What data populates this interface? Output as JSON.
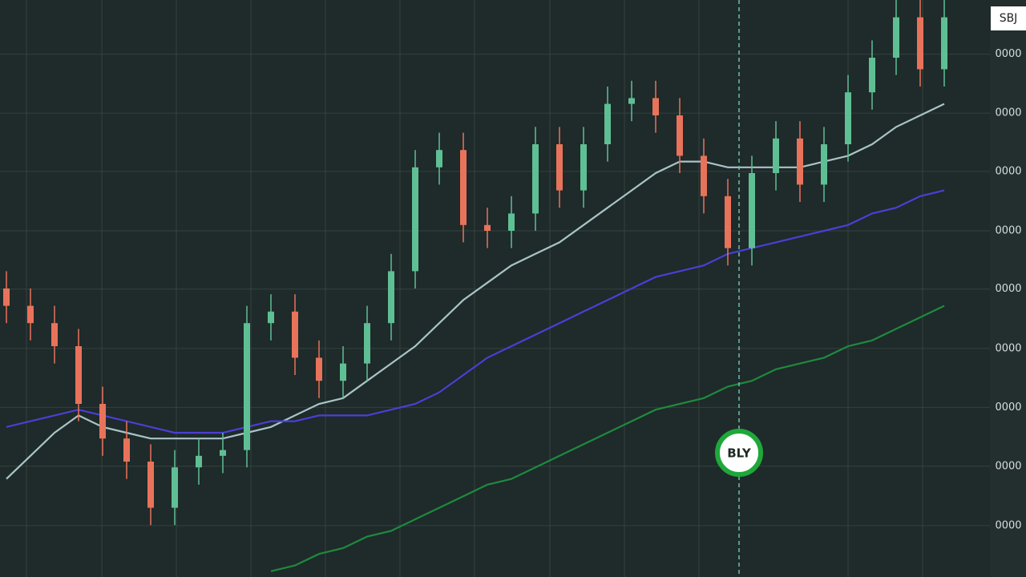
{
  "chart_data": {
    "type": "candlestick",
    "price_label": "SBJ",
    "signal_label": "BLY",
    "ylim": [
      0,
      100
    ],
    "yticks": [
      {
        "value": 90.6,
        "label": "0000"
      },
      {
        "value": 80.4,
        "label": "0000"
      },
      {
        "value": 70.3,
        "label": "0000"
      },
      {
        "value": 60,
        "label": "0000"
      },
      {
        "value": 49.9,
        "label": "0000"
      },
      {
        "value": 39.6,
        "label": "0000"
      },
      {
        "value": 29.4,
        "label": "0000"
      },
      {
        "value": 19.2,
        "label": "0000"
      },
      {
        "value": 8.9,
        "label": "0000"
      }
    ],
    "grid": true,
    "up_color": "#5fbf94",
    "down_color": "#e8735a",
    "open": [
      50,
      47,
      44,
      40,
      30,
      24,
      20,
      12,
      19,
      21,
      22,
      44,
      46,
      38,
      34,
      37,
      44,
      53,
      71,
      74,
      61,
      60,
      63,
      75,
      67,
      75,
      82,
      83,
      80,
      73,
      66,
      57,
      70,
      76,
      68,
      75,
      84,
      90,
      97,
      88
    ],
    "high": [
      53,
      50,
      47,
      43,
      33,
      27,
      23,
      22,
      24,
      25,
      47,
      49,
      49,
      41,
      40,
      47,
      56,
      74,
      77,
      77,
      64,
      66,
      78,
      78,
      78,
      85,
      86,
      86,
      83,
      76,
      69,
      73,
      79,
      79,
      78,
      87,
      93,
      100,
      100,
      100
    ],
    "low": [
      44,
      41,
      37,
      27,
      21,
      17,
      9,
      9,
      16,
      18,
      19,
      41,
      35,
      31,
      31,
      34,
      41,
      50,
      68,
      58,
      57,
      57,
      60,
      64,
      64,
      72,
      79,
      77,
      70,
      63,
      54,
      54,
      67,
      65,
      65,
      72,
      81,
      87,
      85,
      85
    ],
    "close": [
      47,
      44,
      40,
      30,
      24,
      20,
      12,
      19,
      21,
      22,
      44,
      46,
      38,
      34,
      37,
      44,
      53,
      71,
      74,
      61,
      60,
      63,
      75,
      67,
      75,
      82,
      83,
      80,
      73,
      66,
      57,
      70,
      76,
      68,
      75,
      84,
      90,
      97,
      88,
      97
    ],
    "series": [
      {
        "color": "#a9c4c6",
        "values": [
          17,
          21,
          25,
          28,
          26,
          25,
          24,
          24,
          24,
          24,
          25,
          26,
          28,
          30,
          31,
          34,
          37,
          40,
          44,
          48,
          51,
          54,
          56,
          58,
          61,
          64,
          67,
          70,
          72,
          72,
          71,
          71,
          71,
          71,
          72,
          73,
          75,
          78,
          80,
          82
        ]
      },
      {
        "color": "#4a3fd6",
        "values": [
          26,
          27,
          28,
          29,
          28,
          27,
          26,
          25,
          25,
          25,
          26,
          27,
          27,
          28,
          28,
          28,
          29,
          30,
          32,
          35,
          38,
          40,
          42,
          44,
          46,
          48,
          50,
          52,
          53,
          54,
          56,
          57,
          58,
          59,
          60,
          61,
          63,
          64,
          66,
          67
        ]
      },
      {
        "color": "#1e8a3e",
        "values": [
          null,
          null,
          null,
          null,
          null,
          null,
          null,
          null,
          null,
          null,
          null,
          1,
          2,
          4,
          5,
          7,
          8,
          10,
          12,
          14,
          16,
          17,
          19,
          21,
          23,
          25,
          27,
          29,
          30,
          31,
          33,
          34,
          36,
          37,
          38,
          40,
          41,
          43,
          45,
          47
        ]
      }
    ]
  }
}
